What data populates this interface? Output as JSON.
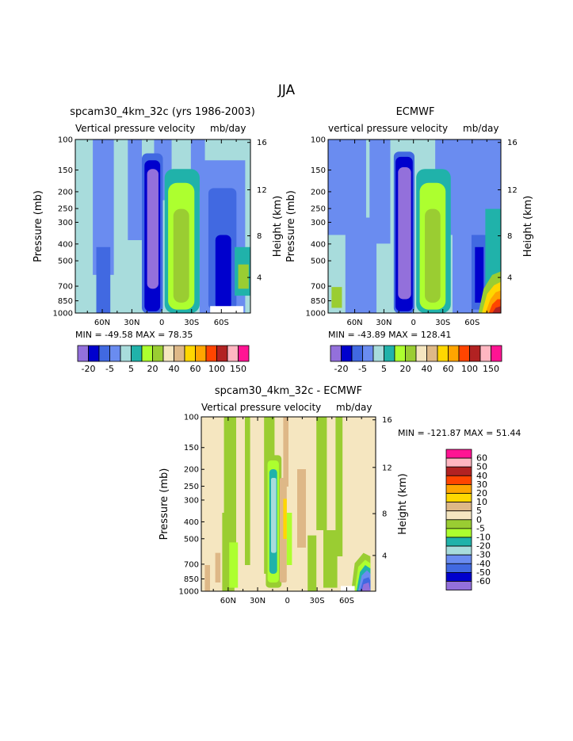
{
  "page": {
    "title": "JJA"
  },
  "panels": [
    {
      "id": "p1",
      "title": "spcam30_4km_32c (yrs 1986-2003)",
      "var_label": "Vertical pressure velocity",
      "units_label": "mb/day",
      "stats": "MIN = -49.58   MAX =  78.35"
    },
    {
      "id": "p2",
      "title": "ECMWF",
      "var_label": "vertical pressure velocity",
      "units_label": "mb/day",
      "stats": "MIN = -43.89   MAX = 128.41"
    },
    {
      "id": "p3",
      "title": "spcam30_4km_32c - ECMWF",
      "var_label": "Vertical pressure velocity",
      "units_label": "mb/day",
      "stats": "MIN = -121.87   MAX =  51.44"
    }
  ],
  "axes": {
    "ylabel_left": "Pressure (mb)",
    "ylabel_right": "Height (km)",
    "pressure_ticks": [
      "100",
      "150",
      "200",
      "250",
      "300",
      "400",
      "500",
      "700",
      "850",
      "1000"
    ],
    "height_ticks": [
      "16",
      "12",
      "8",
      "4"
    ],
    "lat_ticks": [
      "60N",
      "30N",
      "0",
      "30S",
      "60S"
    ]
  },
  "colors": {
    "field_palette": [
      "#9370db",
      "#0000cd",
      "#4169e1",
      "#6a8cf0",
      "#a8dcdc",
      "#20b2aa",
      "#adff2f",
      "#9acd32",
      "#f5e6c0",
      "#deb887",
      "#ffd700",
      "#ffa500",
      "#ff4500",
      "#b22222",
      "#ffb6c1",
      "#ff1493"
    ],
    "diff_palette": [
      "#9370db",
      "#0000cd",
      "#4169e1",
      "#6a8cf0",
      "#a8dcdc",
      "#20b2aa",
      "#adff2f",
      "#9acd32",
      "#f5e6c0",
      "#deb887",
      "#ffd700",
      "#ffa500",
      "#ff4500",
      "#b22222",
      "#ffb6c1",
      "#ff1493"
    ]
  },
  "legends": {
    "field_labels": [
      "-20",
      "-5",
      "5",
      "20",
      "40",
      "60",
      "100",
      "150"
    ],
    "diff_labels": [
      "60",
      "50",
      "40",
      "30",
      "20",
      "10",
      "5",
      "0",
      "-5",
      "-10",
      "-20",
      "-30",
      "-40",
      "-50",
      "-60"
    ]
  },
  "chart_data": [
    {
      "type": "heatmap",
      "title": "spcam30_4km_32c (yrs 1986-2003)",
      "variable": "Vertical pressure velocity",
      "units": "mb/day",
      "ylabel": "Pressure (mb)",
      "ylabel_right": "Height (km)",
      "y_scale": "log",
      "ylim": [
        1000,
        100
      ],
      "xlim": [
        "90N",
        "90S"
      ],
      "min": -49.58,
      "max": 78.35,
      "contour_levels": [
        -50,
        -40,
        -30,
        -20,
        -10,
        -5,
        0,
        5,
        10,
        20,
        30,
        40,
        50,
        60,
        100,
        150
      ]
    },
    {
      "type": "heatmap",
      "title": "ECMWF",
      "variable": "vertical pressure velocity",
      "units": "mb/day",
      "ylabel": "Pressure (mb)",
      "ylabel_right": "Height (km)",
      "y_scale": "log",
      "ylim": [
        1000,
        100
      ],
      "xlim": [
        "90N",
        "90S"
      ],
      "min": -43.89,
      "max": 128.41,
      "contour_levels": [
        -50,
        -40,
        -30,
        -20,
        -10,
        -5,
        0,
        5,
        10,
        20,
        30,
        40,
        50,
        60,
        100,
        150
      ]
    },
    {
      "type": "heatmap",
      "title": "spcam30_4km_32c - ECMWF",
      "variable": "Vertical pressure velocity",
      "units": "mb/day",
      "ylabel": "Pressure (mb)",
      "ylabel_right": "Height (km)",
      "y_scale": "log",
      "ylim": [
        1000,
        100
      ],
      "xlim": [
        "90N",
        "90S"
      ],
      "min": -121.87,
      "max": 51.44,
      "contour_levels": [
        -60,
        -50,
        -40,
        -30,
        -20,
        -10,
        -5,
        0,
        5,
        10,
        20,
        30,
        40,
        50,
        60
      ]
    }
  ]
}
